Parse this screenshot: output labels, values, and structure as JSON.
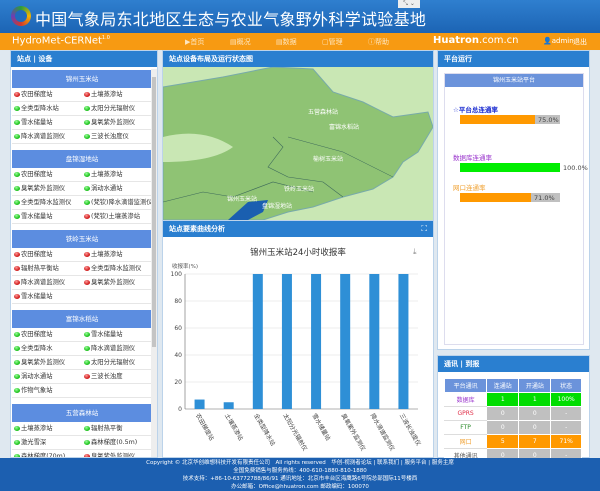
{
  "header": {
    "title": "中国气象局东北地区生态与农业气象野外科学试验基地",
    "brand": "HydroMet-CERNet",
    "version": "1.0",
    "partner": "Huatron",
    "partner_suffix": ".com.cn",
    "user": "admin",
    "logout": "退出"
  },
  "nav": [
    {
      "label": "▶首页"
    },
    {
      "label": "▤概况"
    },
    {
      "label": "▤数据"
    },
    {
      "label": "▢管理"
    },
    {
      "label": "ⓘ帮助"
    }
  ],
  "left": {
    "title": "站点 | 设备",
    "stations": [
      {
        "name": "锦州玉米站",
        "items": [
          [
            "农田梯度站",
            "red"
          ],
          [
            "土壤蒸渗站",
            "red"
          ],
          [
            "全类型降水站",
            "green"
          ],
          [
            "太阳分光辐射仪",
            "green"
          ],
          [
            "雪水储量站",
            "green"
          ],
          [
            "臭氧紫外监测仪",
            "green"
          ],
          [
            "降水滴谱监测仪",
            "green"
          ],
          [
            "三波长浊度仪",
            "green"
          ]
        ]
      },
      {
        "name": "盘锦湿地站",
        "items": [
          [
            "农田梯度站",
            "green"
          ],
          [
            "土壤蒸渗站",
            "green"
          ],
          [
            "臭氧紫外监测仪",
            "green"
          ],
          [
            "涡动水通站",
            "green"
          ],
          [
            "全类型降水监测仪",
            "green"
          ],
          [
            "(梵钦)降水滴谱监测仪",
            "green"
          ],
          [
            "雪水储量站",
            "green"
          ],
          [
            "(梵钦)土壤蒸渗站",
            "red"
          ]
        ]
      },
      {
        "name": "铁岭玉米站",
        "items": [
          [
            "农田梯度站",
            "red"
          ],
          [
            "土壤蒸渗站",
            "red"
          ],
          [
            "辐射热平衡站",
            "red"
          ],
          [
            "全类型降水监测仪",
            "red"
          ],
          [
            "降水滴谱监测仪",
            "red"
          ],
          [
            "臭氧紫外监测仪",
            "red"
          ],
          [
            "雪水储量站",
            "red"
          ]
        ]
      },
      {
        "name": "富锦水稻站",
        "items": [
          [
            "农田梯度站",
            "green"
          ],
          [
            "雪水储量站",
            "green"
          ],
          [
            "全类型降水",
            "green"
          ],
          [
            "降水滴谱监测仪",
            "green"
          ],
          [
            "臭氧紫外监测仪",
            "green"
          ],
          [
            "太阳分光辐射仪",
            "green"
          ],
          [
            "涡动水通站",
            "green"
          ],
          [
            "三波长浊度",
            "red"
          ],
          [
            "作物气象站",
            "green"
          ]
        ]
      },
      {
        "name": "五营森林站",
        "items": [
          [
            "土壤蒸渗站",
            "green"
          ],
          [
            "辐射热平衡",
            "green"
          ],
          [
            "激光雪深",
            "green"
          ],
          [
            "森林梯度(0.5m)",
            "green"
          ],
          [
            "森林梯度(70m)",
            "green"
          ],
          [
            "臭氧紫外监测仪",
            "red"
          ]
        ]
      }
    ]
  },
  "map": {
    "title": "站点设备布局及运行状态图",
    "labels": [
      "五营森林站",
      "富锦水稻站",
      "榆树玉米站",
      "铁岭玉米站",
      "锦州玉米站",
      "盘锦湿地站"
    ]
  },
  "chart_panel": {
    "title": "站点要素曲线分析"
  },
  "chart_data": {
    "type": "bar",
    "title": "锦州玉米站24小时收报率",
    "ylabel": "收报率(%)",
    "ylim": [
      0,
      100
    ],
    "yticks": [
      0,
      20,
      40,
      60,
      80,
      100
    ],
    "grid": true,
    "color": "#2e8fd6",
    "categories": [
      "农田梯度站",
      "土壤蒸渗站",
      "全类型降水站",
      "太阳分光辐射仪",
      "雪水储量站",
      "臭氧紫外监测仪",
      "降水滴谱监测仪",
      "三波长浊度仪"
    ],
    "values": [
      7,
      5,
      100,
      100,
      100,
      100,
      100,
      100
    ]
  },
  "platform": {
    "title": "平台运行",
    "sub": "锦州玉米站平台",
    "bars": [
      {
        "label": "☆平台总连通率",
        "value": 75.0,
        "text": "75.0%",
        "color": "#ff9900",
        "labelColor": "#1a2bd0"
      },
      {
        "label": "数据库连通率",
        "value": 100.0,
        "text": "100.0%",
        "color": "#00ee00",
        "labelColor": "#9933cc"
      },
      {
        "label": "网口连通率",
        "value": 71.0,
        "text": "71.0%",
        "color": "#ff9900",
        "labelColor": "#f0a030"
      }
    ]
  },
  "comm": {
    "title": "通讯 | 到报",
    "headers": [
      "平台通讯",
      "连通站",
      "开通站",
      "状态"
    ],
    "rows": [
      [
        "数据库",
        "1",
        "1",
        "100%",
        "#9933cc",
        "#00dd00"
      ],
      [
        "GPRS",
        "0",
        "0",
        "-",
        "#e0304a",
        "#c0c0c0"
      ],
      [
        "FTP",
        "0",
        "0",
        "-",
        "#2a8a2a",
        "#c0c0c0"
      ],
      [
        "网口",
        "5",
        "7",
        "71%",
        "#f0a030",
        "#ff9900"
      ],
      [
        "其他通讯",
        "0",
        "0",
        "-",
        "#555555",
        "#c0c0c0"
      ]
    ]
  },
  "footer": [
    "Copyright © 北京华创维想科技开发有限责任公司　All rights reserved　华创-视测者论坛 | 联系我们 | 服务平台 | 服务主席",
    "全国免费销售与服务热线：400-610-1880-810-1880",
    "技术支持：+86-10-63772788/86/91 通讯地址：北京市丰台区海鹰路6号院总部国际11号楼西",
    "办公邮箱：Office@hhuatron.com 邮政编码：100070"
  ]
}
